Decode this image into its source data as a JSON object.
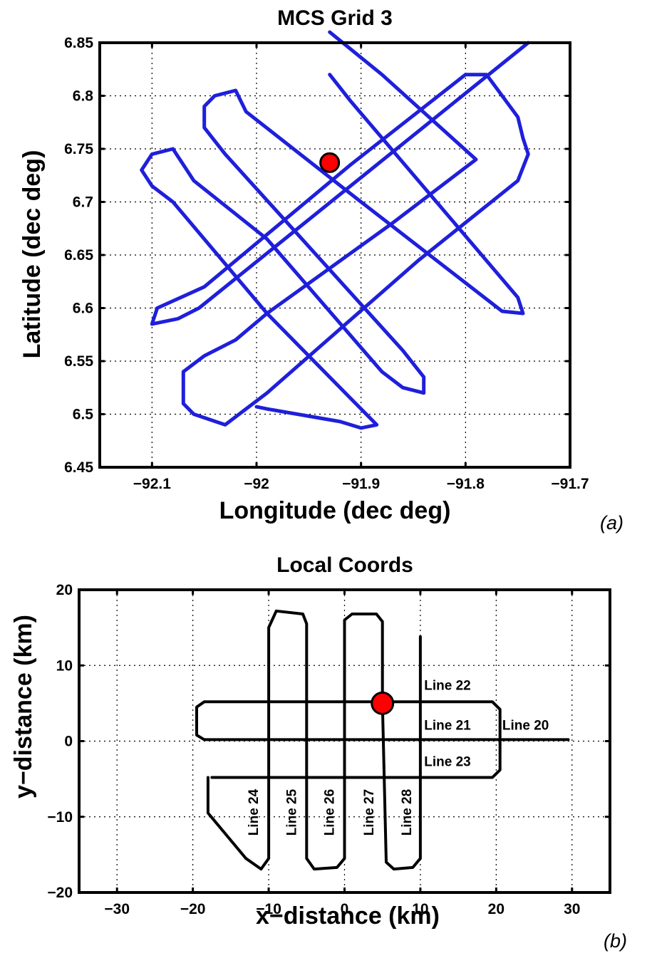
{
  "chart_data": [
    {
      "type": "line",
      "title": "MCS Grid 3",
      "xlabel": "Longitude (dec deg)",
      "ylabel": "Latitude (dec deg)",
      "xlim": [
        -92.15,
        -91.7
      ],
      "ylim": [
        6.45,
        6.85
      ],
      "x_ticks": [
        -92.1,
        -92,
        -91.9,
        -91.8,
        -91.7
      ],
      "x_tick_labels": [
        "−92.1",
        "−92",
        "−91.9",
        "−91.8",
        "−91.7"
      ],
      "y_ticks": [
        6.45,
        6.5,
        6.55,
        6.6,
        6.65,
        6.7,
        6.75,
        6.8,
        6.85
      ],
      "y_tick_labels": [
        "6.45",
        "6.5",
        "6.55",
        "6.6",
        "6.65",
        "6.7",
        "6.75",
        "6.8",
        "6.85"
      ],
      "grid": true,
      "line_color": "#1f1fdb",
      "marker_color": "#ff0000",
      "panel_label": "(a)",
      "track": [
        [
          -91.74,
          6.85
        ],
        [
          -92.055,
          6.6
        ],
        [
          -92.075,
          6.59
        ],
        [
          -92.1,
          6.585
        ],
        [
          -92.095,
          6.6
        ],
        [
          -92.05,
          6.62
        ],
        [
          -91.91,
          6.735
        ],
        [
          -91.8,
          6.82
        ],
        [
          -91.78,
          6.82
        ],
        [
          -91.75,
          6.78
        ],
        [
          -91.745,
          6.76
        ],
        [
          -91.74,
          6.745
        ],
        [
          -91.75,
          6.72
        ],
        [
          -91.845,
          6.645
        ],
        [
          -91.99,
          6.52
        ],
        [
          -92.03,
          6.49
        ],
        [
          -92.06,
          6.5
        ],
        [
          -92.07,
          6.51
        ],
        [
          -92.07,
          6.54
        ],
        [
          -92.05,
          6.555
        ],
        [
          -92.02,
          6.57
        ],
        [
          -91.99,
          6.595
        ],
        [
          -91.87,
          6.68
        ],
        [
          -91.83,
          6.71
        ],
        [
          -91.79,
          6.74
        ],
        [
          -91.88,
          6.82
        ],
        [
          -91.93,
          6.86
        ]
      ],
      "track_alt": [
        [
          -91.93,
          6.82
        ],
        [
          -91.91,
          6.795
        ],
        [
          -91.75,
          6.61
        ],
        [
          -91.745,
          6.595
        ],
        [
          -91.765,
          6.597
        ],
        [
          -91.9,
          6.7
        ],
        [
          -92.01,
          6.785
        ],
        [
          -92.02,
          6.805
        ],
        [
          -92.04,
          6.8
        ],
        [
          -92.05,
          6.79
        ],
        [
          -92.05,
          6.77
        ],
        [
          -92.03,
          6.745
        ],
        [
          -91.86,
          6.56
        ],
        [
          -91.84,
          6.535
        ],
        [
          -91.84,
          6.52
        ],
        [
          -91.86,
          6.525
        ],
        [
          -91.88,
          6.54
        ],
        [
          -91.99,
          6.665
        ],
        [
          -92.06,
          6.72
        ],
        [
          -92.08,
          6.75
        ],
        [
          -92.1,
          6.745
        ],
        [
          -92.11,
          6.73
        ],
        [
          -92.1,
          6.715
        ],
        [
          -92.08,
          6.7
        ],
        [
          -91.99,
          6.595
        ],
        [
          -91.95,
          6.555
        ],
        [
          -91.91,
          6.515
        ],
        [
          -91.885,
          6.49
        ],
        [
          -91.9,
          6.487
        ],
        [
          -91.92,
          6.493
        ],
        [
          -91.99,
          6.505
        ],
        [
          -92.0,
          6.507
        ]
      ],
      "marker": {
        "x": -91.93,
        "y": 6.737
      }
    },
    {
      "type": "line",
      "title": "Local Coords",
      "xlabel": "x−distance (km)",
      "ylabel": "y−distance (km)",
      "xlim": [
        -35,
        35
      ],
      "ylim": [
        -20,
        20
      ],
      "x_ticks": [
        -30,
        -20,
        -10,
        0,
        10,
        20,
        30
      ],
      "x_tick_labels": [
        "−30",
        "−20",
        "−10",
        "0",
        "10",
        "20",
        "30"
      ],
      "y_ticks": [
        -20,
        -10,
        0,
        10,
        20
      ],
      "y_tick_labels": [
        "−20",
        "−10",
        "0",
        "10",
        "20"
      ],
      "grid": true,
      "line_color": "#000000",
      "marker_color": "#ff0000",
      "panel_label": "(b)",
      "track": [
        [
          -17.5,
          -4.8
        ],
        [
          19.5,
          -4.8
        ],
        [
          20.5,
          -3.8
        ],
        [
          20.5,
          4.2
        ],
        [
          19.5,
          5.2
        ],
        [
          -18.5,
          5.2
        ],
        [
          -19.5,
          4.5
        ],
        [
          -19.5,
          0.8
        ],
        [
          -18.5,
          0.2
        ],
        [
          29.5,
          0.2
        ]
      ],
      "track_ns": [
        [
          10,
          13.8
        ],
        [
          10,
          -15.5
        ],
        [
          9,
          -16.7
        ],
        [
          6.5,
          -16.9
        ],
        [
          5.5,
          -16
        ],
        [
          5,
          5
        ],
        [
          5,
          15.8
        ],
        [
          4.2,
          16.8
        ],
        [
          1,
          16.8
        ],
        [
          0,
          16
        ],
        [
          0,
          -15.5
        ],
        [
          -1,
          -16.7
        ],
        [
          -4,
          -16.9
        ],
        [
          -5,
          -15.5
        ],
        [
          -5,
          15.5
        ],
        [
          -5.5,
          16.8
        ],
        [
          -9,
          17.2
        ],
        [
          -10,
          15
        ],
        [
          -10,
          -15.5
        ],
        [
          -11,
          -16.9
        ],
        [
          -13,
          -15.5
        ],
        [
          -18,
          -9.5
        ],
        [
          -18,
          -4.8
        ]
      ],
      "line_labels": [
        {
          "text": "Line 22",
          "x": 10.5,
          "y": 6.8
        },
        {
          "text": "Line 21",
          "x": 10.5,
          "y": 1.5
        },
        {
          "text": "Line 20",
          "x": 20.8,
          "y": 1.5
        },
        {
          "text": "Line 23",
          "x": 10.5,
          "y": -3.3
        },
        {
          "text": "Line 24",
          "x": -11.4,
          "y": -12.5
        },
        {
          "text": "Line 25",
          "x": -6.4,
          "y": -12.5
        },
        {
          "text": "Line 26",
          "x": -1.4,
          "y": -12.5
        },
        {
          "text": "Line 27",
          "x": 3.8,
          "y": -12.5
        },
        {
          "text": "Line 28",
          "x": 8.8,
          "y": -12.5
        }
      ],
      "marker": {
        "x": 5,
        "y": 5
      }
    }
  ]
}
